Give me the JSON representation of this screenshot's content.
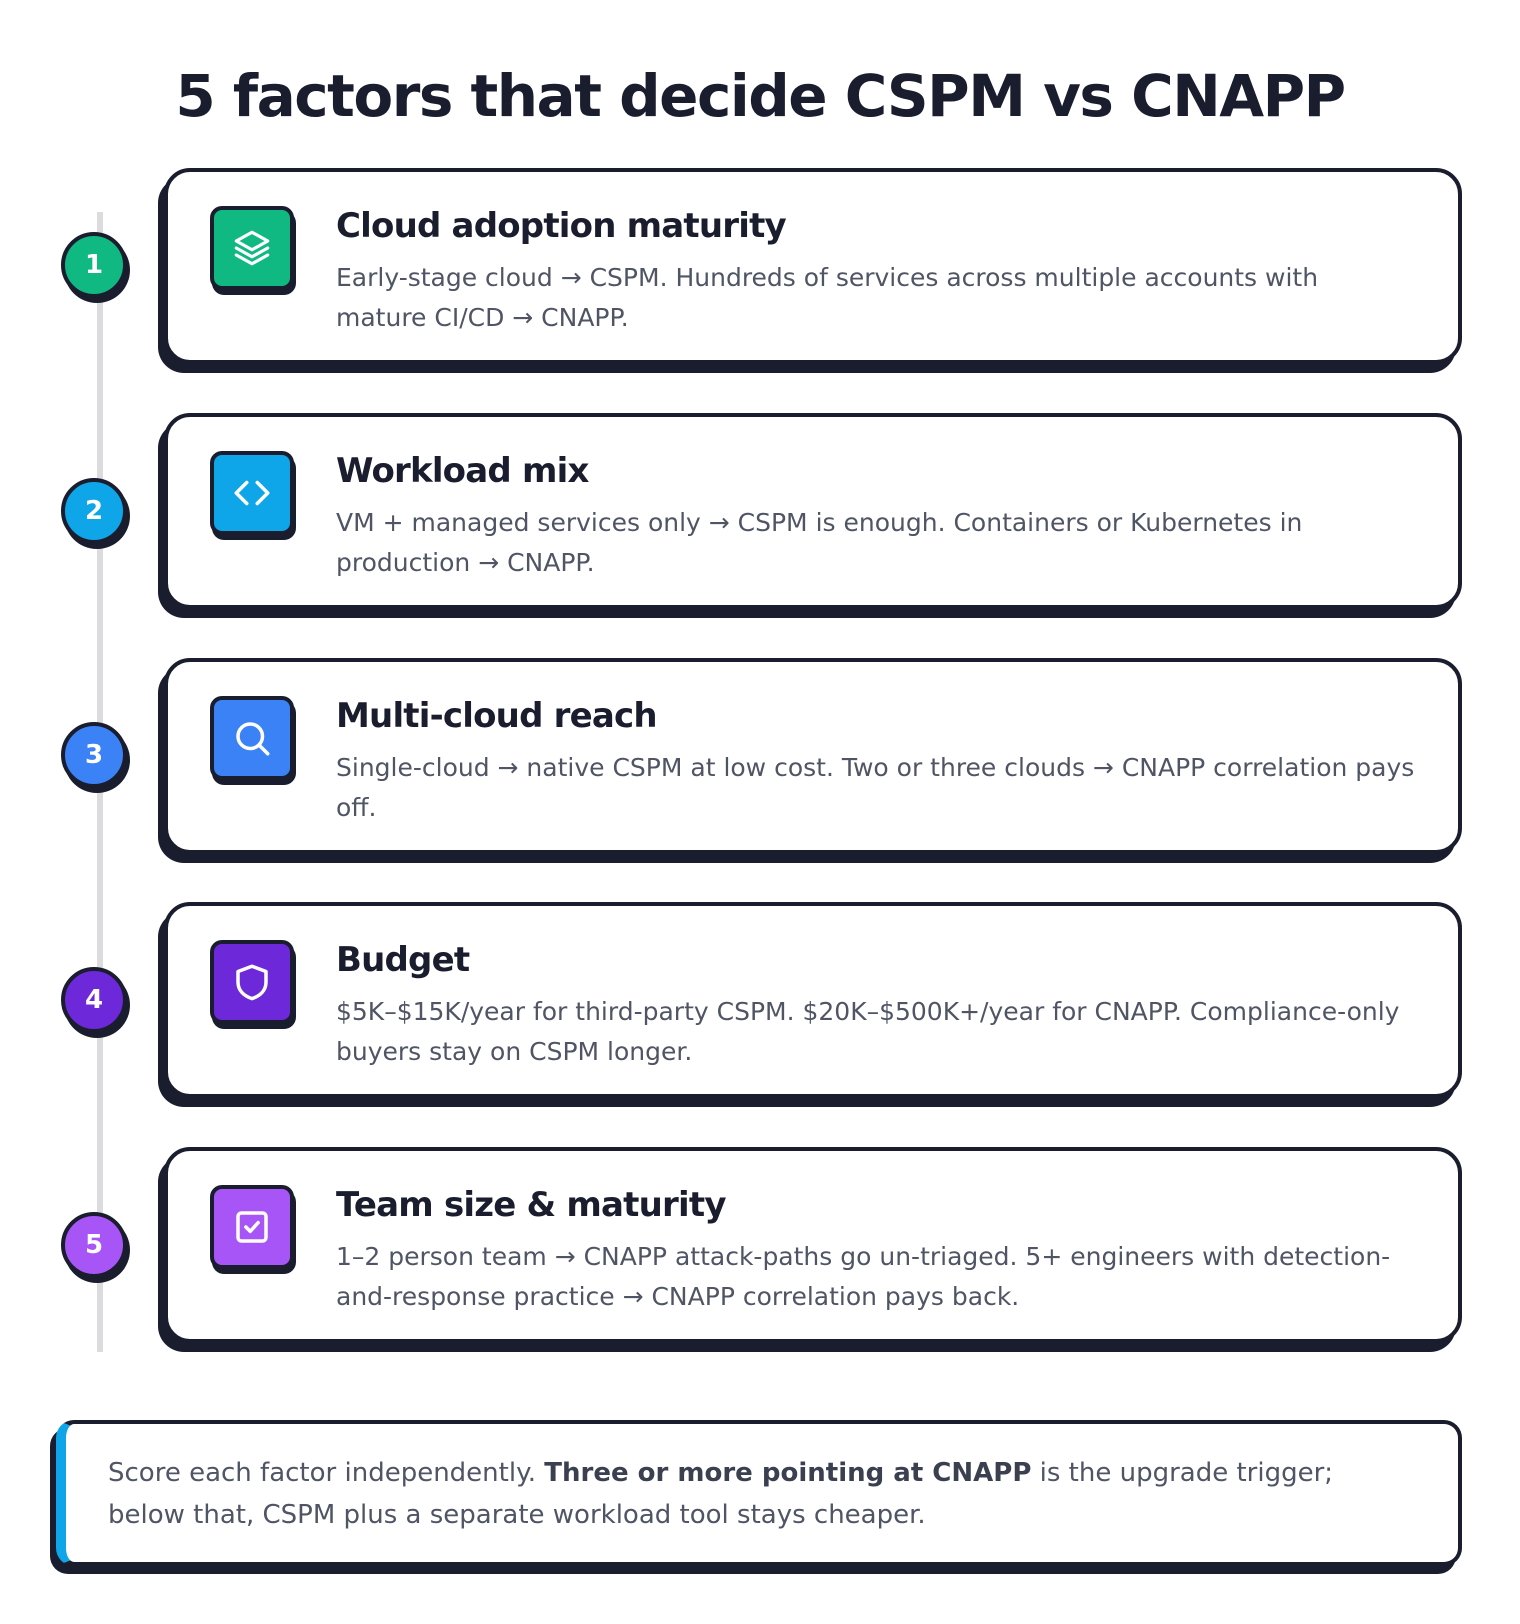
{
  "title": "5 factors that decide CSPM vs CNAPP",
  "factors": [
    {
      "number": "1",
      "title": "Cloud adoption maturity",
      "description": "Early-stage cloud → CSPM. Hundreds of services across multiple accounts with mature CI/CD → CNAPP.",
      "icon": "layers-icon",
      "color": "#10b981"
    },
    {
      "number": "2",
      "title": "Workload mix",
      "description": "VM + managed services only → CSPM is enough. Containers or Kubernetes in production → CNAPP.",
      "icon": "code-icon",
      "color": "#0ea5e9"
    },
    {
      "number": "3",
      "title": "Multi-cloud reach",
      "description": "Single-cloud → native CSPM at low cost. Two or three clouds → CNAPP correlation pays off.",
      "icon": "search-icon",
      "color": "#3b82f6"
    },
    {
      "number": "4",
      "title": "Budget",
      "description": "$5K–$15K/year for third-party CSPM. $20K–$500K+/year for CNAPP. Compliance-only buyers stay on CSPM longer.",
      "icon": "shield-icon",
      "color": "#6d28d9"
    },
    {
      "number": "5",
      "title": "Team size & maturity",
      "description": "1–2 person team → CNAPP attack-paths go un-triaged. 5+ engineers with detection-and-response practice → CNAPP correlation pays back.",
      "icon": "checkbox-icon",
      "color": "#a855f7"
    }
  ],
  "note": {
    "prefix": "Score each factor independently. ",
    "emphasis": "Three or more pointing at CNAPP",
    "suffix": " is the upgrade trigger; below that, CSPM plus a separate workload tool stays cheaper.",
    "accent_color": "#0ea5e9"
  }
}
